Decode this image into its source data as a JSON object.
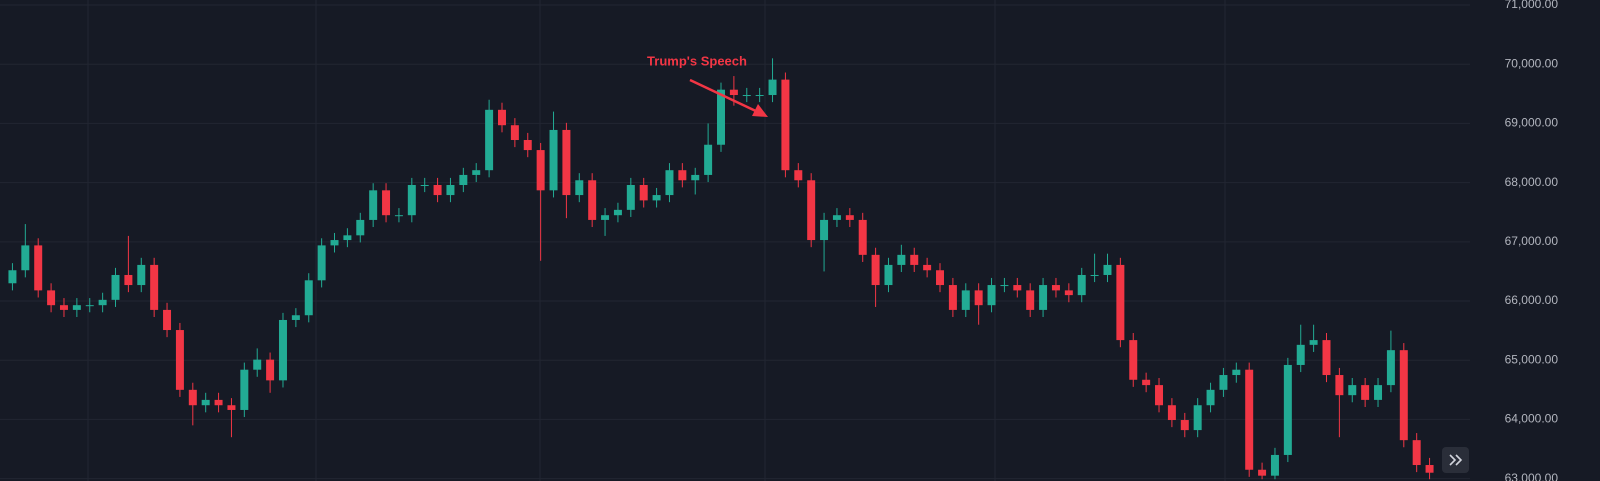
{
  "chart_data": {
    "type": "candlestick",
    "annotation": "Trump's Speech",
    "up_color": "#22ab94",
    "down_color": "#f23645",
    "grid": true,
    "ylim": [
      62960,
      71085
    ],
    "yticks": [
      {
        "value": 63000,
        "label": "63,000.00"
      },
      {
        "value": 64000,
        "label": "64,000.00"
      },
      {
        "value": 65000,
        "label": "65,000.00"
      },
      {
        "value": 66000,
        "label": "66,000.00"
      },
      {
        "value": 67000,
        "label": "67,000.00"
      },
      {
        "value": 68000,
        "label": "68,000.00"
      },
      {
        "value": 69000,
        "label": "69,000.00"
      },
      {
        "value": 70000,
        "label": "70,000.00"
      },
      {
        "value": 71000,
        "label": "71,000.00"
      }
    ],
    "open": [
      66300,
      66520,
      66940,
      66180,
      65930,
      65850,
      65930,
      65930,
      66020,
      66440,
      66270,
      66610,
      65850,
      65510,
      64500,
      64240,
      64330,
      64240,
      64160,
      64840,
      65010,
      64660,
      65680,
      65760,
      66350,
      66940,
      67030,
      67110,
      67370,
      67870,
      67450,
      67450,
      67960,
      67960,
      67790,
      67960,
      68130,
      68210,
      69230,
      68970,
      68720,
      68550,
      67870,
      68890,
      67790,
      68040,
      67370,
      67450,
      67540,
      67960,
      67700,
      67790,
      68210,
      68040,
      68130,
      68640,
      69570,
      69480,
      69480,
      69480,
      69740,
      68210,
      68040,
      67030,
      67370,
      67450,
      67370,
      66780,
      66270,
      66610,
      66780,
      66610,
      66520,
      66270,
      65850,
      66180,
      65930,
      66270,
      66270,
      66180,
      65850,
      66270,
      66180,
      66100,
      66440,
      66440,
      66610,
      65340,
      64670,
      64580,
      64240,
      63990,
      63820,
      64240,
      64500,
      64750,
      64840,
      63150,
      63050,
      63400,
      64920,
      65260,
      65340,
      64750,
      64410,
      64580,
      64330,
      64580,
      65170,
      63650,
      63230
    ],
    "high": [
      66640,
      67300,
      67060,
      66300,
      66050,
      66050,
      66050,
      66140,
      66560,
      67100,
      66730,
      66730,
      65970,
      65630,
      64620,
      64450,
      64450,
      64360,
      64960,
      65200,
      65130,
      65800,
      65880,
      66470,
      67060,
      67150,
      67230,
      67490,
      67990,
      67990,
      67570,
      68080,
      68080,
      68080,
      68080,
      68250,
      68330,
      69400,
      69350,
      69090,
      68840,
      68670,
      69200,
      69010,
      68160,
      68160,
      67570,
      67660,
      68080,
      68080,
      67910,
      68330,
      68330,
      68250,
      69000,
      69690,
      69800,
      69600,
      69600,
      70100,
      69860,
      68330,
      68160,
      67490,
      67570,
      67570,
      67490,
      66900,
      66730,
      66950,
      66900,
      66730,
      66640,
      66390,
      66300,
      66300,
      66390,
      66390,
      66390,
      66300,
      66390,
      66390,
      66300,
      66560,
      66800,
      66800,
      66730,
      65460,
      64790,
      64700,
      64360,
      64110,
      64360,
      64620,
      64870,
      64960,
      64960,
      63270,
      63520,
      65040,
      65600,
      65600,
      65460,
      64870,
      64700,
      64700,
      64700,
      65500,
      65290,
      63770,
      63350
    ],
    "low": [
      66180,
      66400,
      66060,
      65810,
      65730,
      65730,
      65810,
      65810,
      65900,
      66150,
      66150,
      65730,
      65390,
      64380,
      63900,
      64120,
      64120,
      63700,
      64040,
      64720,
      64450,
      64540,
      65560,
      65640,
      66230,
      66820,
      66910,
      66990,
      67250,
      67330,
      67330,
      67330,
      67840,
      67670,
      67670,
      67840,
      68010,
      68090,
      68850,
      68600,
      68430,
      66680,
      67750,
      67400,
      67670,
      67250,
      67100,
      67330,
      67420,
      67580,
      67580,
      67670,
      67920,
      67800,
      68010,
      68520,
      69300,
      69360,
      69360,
      69360,
      68090,
      67920,
      66910,
      66500,
      67250,
      67250,
      66660,
      65900,
      66150,
      66490,
      66490,
      66400,
      66150,
      65730,
      65730,
      65600,
      65810,
      66150,
      66060,
      65730,
      65730,
      66060,
      65980,
      65980,
      66320,
      66320,
      65220,
      64550,
      64460,
      64120,
      63870,
      63700,
      63700,
      64120,
      64380,
      64620,
      63030,
      62990,
      62990,
      63280,
      64800,
      65140,
      64630,
      63700,
      64290,
      64210,
      64210,
      64460,
      63530,
      63110,
      62990
    ],
    "close": [
      66520,
      66940,
      66180,
      65930,
      65850,
      65930,
      65930,
      66020,
      66440,
      66270,
      66610,
      65850,
      65510,
      64500,
      64240,
      64330,
      64240,
      64160,
      64840,
      65010,
      64660,
      65680,
      65760,
      66350,
      66940,
      67030,
      67110,
      67370,
      67870,
      67450,
      67450,
      67960,
      67960,
      67790,
      67960,
      68130,
      68210,
      69230,
      68970,
      68720,
      68550,
      67870,
      68890,
      67790,
      68040,
      67370,
      67450,
      67540,
      67960,
      67700,
      67790,
      68210,
      68040,
      68130,
      68640,
      69570,
      69480,
      69480,
      69480,
      69740,
      68210,
      68040,
      67030,
      67370,
      67450,
      67370,
      66780,
      66270,
      66610,
      66780,
      66610,
      66520,
      66270,
      65850,
      66180,
      65930,
      66270,
      66270,
      66180,
      65850,
      66270,
      66180,
      66100,
      66440,
      66440,
      66610,
      65340,
      64670,
      64580,
      64240,
      63990,
      63820,
      64240,
      64500,
      64750,
      64840,
      63150,
      63050,
      63400,
      64920,
      65260,
      65340,
      64750,
      64410,
      64580,
      64330,
      64580,
      65170,
      63650,
      63230,
      63100
    ]
  }
}
